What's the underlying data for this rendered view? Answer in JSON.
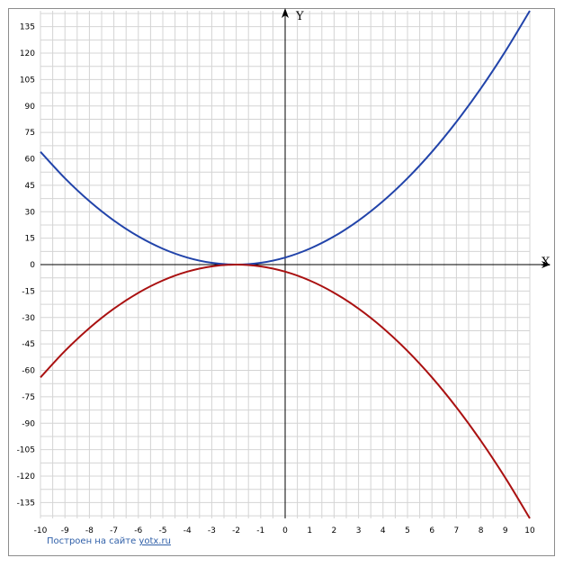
{
  "chart_data": {
    "type": "line",
    "title": "",
    "xlabel": "X",
    "ylabel": "Y",
    "xlim": [
      -10,
      10
    ],
    "ylim": [
      -144,
      144
    ],
    "grid": true,
    "x_ticks": [
      -10,
      -9,
      -8,
      -7,
      -6,
      -5,
      -4,
      -3,
      -2,
      -1,
      0,
      1,
      2,
      3,
      4,
      5,
      6,
      7,
      8,
      9,
      10
    ],
    "y_ticks": [
      -135,
      -120,
      -105,
      -90,
      -75,
      -60,
      -45,
      -30,
      -15,
      0,
      15,
      30,
      45,
      60,
      75,
      90,
      105,
      120,
      135
    ],
    "series": [
      {
        "color": "#2244aa",
        "x": [
          -10,
          -9,
          -8,
          -7,
          -6,
          -5,
          -4,
          -3,
          -2,
          -1,
          0,
          1,
          2,
          3,
          4,
          5,
          6,
          7,
          8,
          9,
          10
        ],
        "y": [
          64,
          49,
          36,
          25,
          16,
          9,
          4,
          1,
          0,
          1,
          4,
          9,
          16,
          25,
          36,
          49,
          64,
          81,
          100,
          121,
          144
        ]
      },
      {
        "color": "#aa1111",
        "x": [
          -10,
          -9,
          -8,
          -7,
          -6,
          -5,
          -4,
          -3,
          -2,
          -1,
          0,
          1,
          2,
          3,
          4,
          5,
          6,
          7,
          8,
          9,
          10
        ],
        "y": [
          -64,
          -49,
          -36,
          -25,
          -16,
          -9,
          -4,
          -1,
          0,
          -1,
          -4,
          -9,
          -16,
          -25,
          -36,
          -49,
          -64,
          -81,
          -100,
          -121,
          -144
        ]
      }
    ]
  },
  "footer": {
    "prefix": "Построен на сайте ",
    "link": "yotx.ru"
  }
}
